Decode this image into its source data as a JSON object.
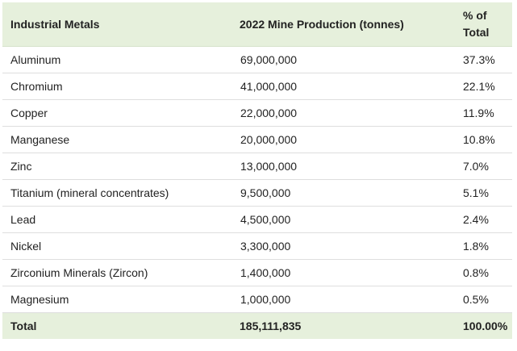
{
  "table": {
    "headers": [
      "Industrial Metals",
      "2022 Mine Production (tonnes)",
      "% of Total"
    ],
    "rows": [
      {
        "metal": "Aluminum",
        "production": "69,000,000",
        "share": "37.3%"
      },
      {
        "metal": "Chromium",
        "production": "41,000,000",
        "share": "22.1%"
      },
      {
        "metal": "Copper",
        "production": "22,000,000",
        "share": "11.9%"
      },
      {
        "metal": "Manganese",
        "production": "20,000,000",
        "share": "10.8%"
      },
      {
        "metal": "Zinc",
        "production": "13,000,000",
        "share": "7.0%"
      },
      {
        "metal": "Titanium (mineral concentrates)",
        "production": "9,500,000",
        "share": "5.1%"
      },
      {
        "metal": "Lead",
        "production": "4,500,000",
        "share": "2.4%"
      },
      {
        "metal": "Nickel",
        "production": "3,300,000",
        "share": "1.8%"
      },
      {
        "metal": "Zirconium Minerals (Zircon)",
        "production": "1,400,000",
        "share": "0.8%"
      },
      {
        "metal": "Magnesium",
        "production": "1,000,000",
        "share": "0.5%"
      }
    ],
    "total": {
      "label": "Total",
      "production": "185,111,835",
      "share": "100.00%"
    }
  },
  "colors": {
    "header_bg": "#e6f0dc",
    "row_border": "#dedede",
    "text": "#222222"
  }
}
